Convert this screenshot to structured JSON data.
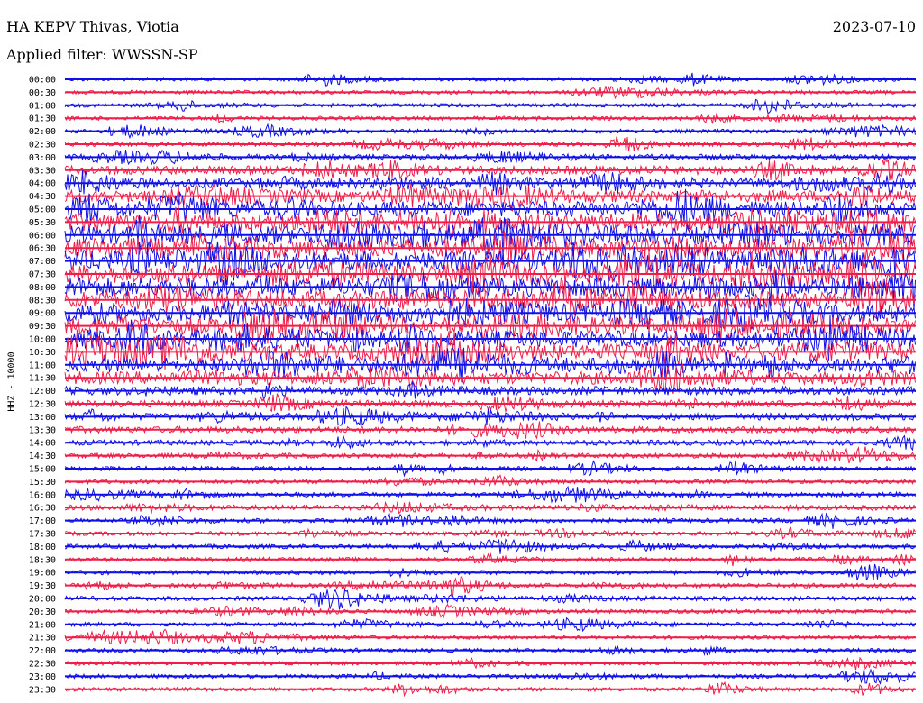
{
  "header": {
    "station": "HA KEPV Thivas, Viotia",
    "filter": "Applied filter: WWSSN-SP",
    "date": "2023-07-10",
    "channel": "HHZ - 10000"
  },
  "colors": {
    "trace_a": "#1010e6",
    "trace_b": "#ee1e4a",
    "text": "#000000",
    "background": "#ffffff"
  },
  "chart_data": {
    "type": "line",
    "title": "HA KEPV Thivas, Viotia",
    "subtitle": "Applied filter: WWSSN-SP",
    "ylabel": "HHZ - 10000",
    "grid": false,
    "legend": "none",
    "row_labels": [
      "00:00",
      "00:30",
      "01:00",
      "01:30",
      "02:00",
      "02:30",
      "03:00",
      "03:30",
      "04:00",
      "04:30",
      "05:00",
      "05:30",
      "06:00",
      "06:30",
      "07:00",
      "07:30",
      "08:00",
      "08:30",
      "09:00",
      "09:30",
      "10:00",
      "10:30",
      "11:00",
      "11:30",
      "12:00",
      "12:30",
      "13:00",
      "13:30",
      "14:00",
      "14:30",
      "15:00",
      "15:30",
      "16:00",
      "16:30",
      "17:00",
      "17:30",
      "18:00",
      "18:30",
      "19:00",
      "19:30",
      "20:00",
      "20:30",
      "21:00",
      "21:30",
      "22:00",
      "22:30",
      "23:00",
      "23:30"
    ],
    "row_colors": [
      "trace_a",
      "trace_b"
    ],
    "row_activity": [
      0.05,
      0.06,
      0.06,
      0.07,
      0.07,
      0.1,
      0.18,
      0.35,
      0.45,
      0.55,
      0.75,
      0.9,
      0.95,
      1.0,
      1.0,
      0.95,
      0.95,
      0.9,
      0.9,
      0.85,
      0.85,
      0.8,
      0.7,
      0.6,
      0.35,
      0.25,
      0.25,
      0.22,
      0.15,
      0.12,
      0.1,
      0.08,
      0.12,
      0.15,
      0.1,
      0.08,
      0.1,
      0.1,
      0.1,
      0.1,
      0.1,
      0.08,
      0.08,
      0.06,
      0.06,
      0.06,
      0.08,
      0.06
    ]
  }
}
